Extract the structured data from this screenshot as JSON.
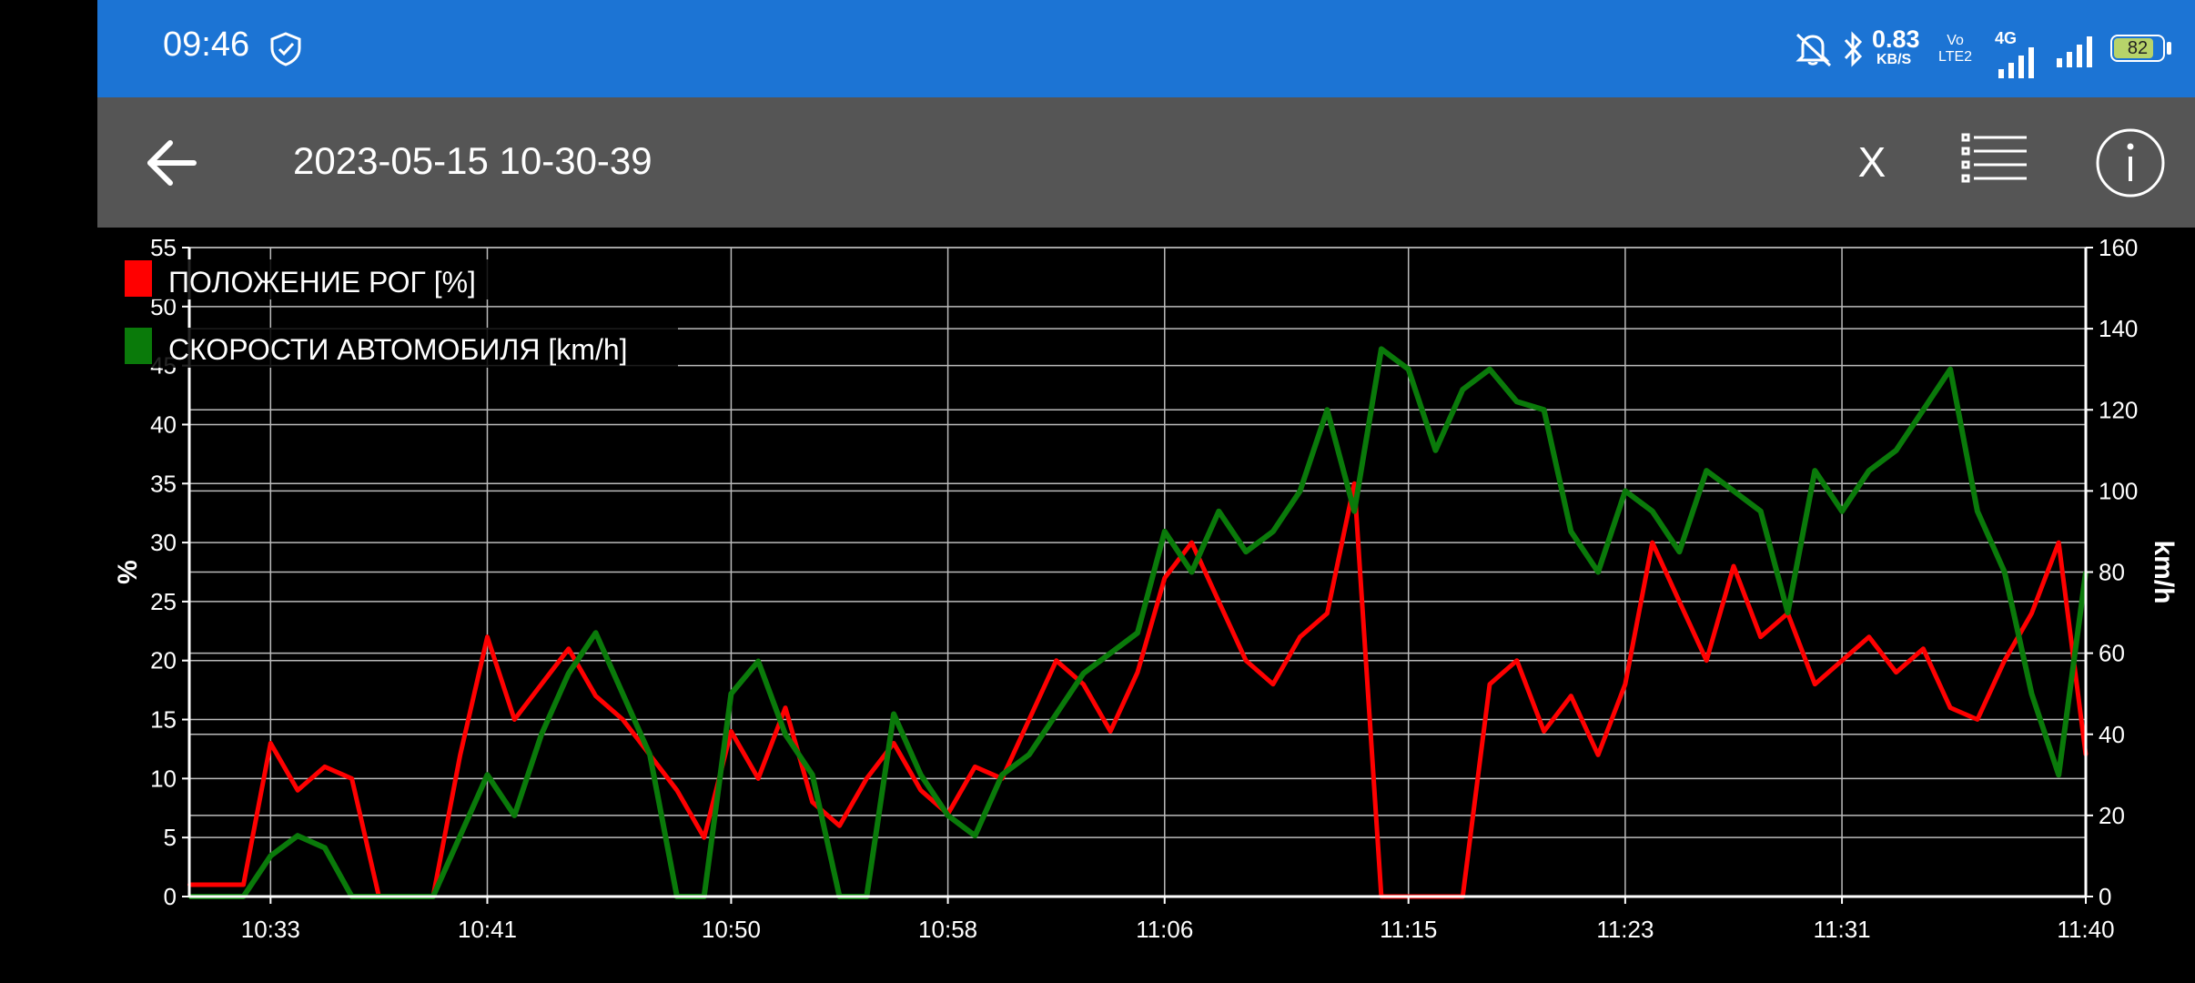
{
  "status_bar": {
    "time": "09:46",
    "net_speed_value": "0.83",
    "net_speed_unit": "KB/S",
    "volte_top": "Vo",
    "volte_bottom": "LTE2",
    "network_type": "4G",
    "battery_level": "82",
    "icons": [
      "shield-icon",
      "mute-icon",
      "bluetooth-icon",
      "signal-icon",
      "signal-icon",
      "battery-icon"
    ]
  },
  "toolbar": {
    "title": "2023-05-15 10-30-39",
    "close_label": "X",
    "icons": [
      "back-arrow-icon",
      "list-icon",
      "info-icon"
    ]
  },
  "colors": {
    "status_bar": "#1c74d4",
    "toolbar": "#555555",
    "background": "#000000",
    "series_red": "#ff0000",
    "series_green": "#0a7a0a",
    "grid": "#bbbbbb"
  },
  "chart_data": {
    "type": "line",
    "grid": true,
    "legend_position": "top-left",
    "x_ticks": [
      "10:33",
      "10:41",
      "10:50",
      "10:58",
      "11:06",
      "11:15",
      "11:23",
      "11:31",
      "11:40"
    ],
    "xlim": [
      "10:30",
      "11:40"
    ],
    "left_axis": {
      "label": "%",
      "ylim": [
        0,
        55
      ],
      "ticks": [
        "0",
        "5",
        "10",
        "15",
        "20",
        "25",
        "30",
        "35",
        "40",
        "45",
        "50",
        "55"
      ]
    },
    "right_axis": {
      "label": "km/h",
      "ylim": [
        0,
        160
      ],
      "ticks": [
        "0",
        "20",
        "40",
        "60",
        "80",
        "100",
        "120",
        "140",
        "160"
      ]
    },
    "series": [
      {
        "name": "ПОЛОЖЕНИЕ РОГ [%]",
        "axis": "left",
        "color": "#ff0000",
        "x": [
          "10:30",
          "10:32",
          "10:33",
          "10:34",
          "10:35",
          "10:36",
          "10:37",
          "10:38",
          "10:39",
          "10:40",
          "10:41",
          "10:42",
          "10:43",
          "10:44",
          "10:45",
          "10:46",
          "10:47",
          "10:48",
          "10:49",
          "10:50",
          "10:51",
          "10:52",
          "10:53",
          "10:54",
          "10:55",
          "10:56",
          "10:57",
          "10:58",
          "10:59",
          "11:00",
          "11:01",
          "11:02",
          "11:03",
          "11:04",
          "11:05",
          "11:06",
          "11:07",
          "11:08",
          "11:09",
          "11:10",
          "11:11",
          "11:12",
          "11:13",
          "11:14",
          "11:15",
          "11:16",
          "11:17",
          "11:18",
          "11:19",
          "11:20",
          "11:21",
          "11:22",
          "11:23",
          "11:24",
          "11:25",
          "11:26",
          "11:27",
          "11:28",
          "11:29",
          "11:30",
          "11:31",
          "11:32",
          "11:33",
          "11:34",
          "11:35",
          "11:36",
          "11:37",
          "11:38",
          "11:39",
          "11:40"
        ],
        "y": [
          1,
          1,
          13,
          9,
          11,
          10,
          0,
          0,
          0,
          12,
          22,
          15,
          18,
          21,
          17,
          15,
          12,
          9,
          5,
          14,
          10,
          16,
          8,
          6,
          10,
          13,
          9,
          7,
          11,
          10,
          15,
          20,
          18,
          14,
          19,
          27,
          30,
          25,
          20,
          18,
          22,
          24,
          35,
          0,
          0,
          0,
          0,
          18,
          20,
          14,
          17,
          12,
          18,
          30,
          25,
          20,
          28,
          22,
          24,
          18,
          20,
          22,
          19,
          21,
          16,
          15,
          20,
          24,
          30,
          12
        ]
      },
      {
        "name": "СКОРОСТИ АВТОМОБИЛЯ [km/h]",
        "axis": "right",
        "color": "#0a7a0a",
        "x": [
          "10:30",
          "10:32",
          "10:33",
          "10:34",
          "10:35",
          "10:36",
          "10:37",
          "10:38",
          "10:39",
          "10:40",
          "10:41",
          "10:42",
          "10:43",
          "10:44",
          "10:45",
          "10:46",
          "10:47",
          "10:48",
          "10:49",
          "10:50",
          "10:51",
          "10:52",
          "10:53",
          "10:54",
          "10:55",
          "10:56",
          "10:57",
          "10:58",
          "10:59",
          "11:00",
          "11:01",
          "11:02",
          "11:03",
          "11:04",
          "11:05",
          "11:06",
          "11:07",
          "11:08",
          "11:09",
          "11:10",
          "11:11",
          "11:12",
          "11:13",
          "11:14",
          "11:15",
          "11:16",
          "11:17",
          "11:18",
          "11:19",
          "11:20",
          "11:21",
          "11:22",
          "11:23",
          "11:24",
          "11:25",
          "11:26",
          "11:27",
          "11:28",
          "11:29",
          "11:30",
          "11:31",
          "11:32",
          "11:33",
          "11:34",
          "11:35",
          "11:36",
          "11:37",
          "11:38",
          "11:39",
          "11:40"
        ],
        "y": [
          0,
          0,
          10,
          15,
          12,
          0,
          0,
          0,
          0,
          15,
          30,
          20,
          40,
          55,
          65,
          50,
          35,
          0,
          0,
          50,
          58,
          40,
          30,
          0,
          0,
          45,
          30,
          20,
          15,
          30,
          35,
          45,
          55,
          60,
          65,
          90,
          80,
          95,
          85,
          90,
          100,
          120,
          95,
          135,
          130,
          110,
          125,
          130,
          122,
          120,
          90,
          80,
          100,
          95,
          85,
          105,
          100,
          95,
          70,
          105,
          95,
          105,
          110,
          120,
          130,
          95,
          80,
          50,
          30,
          80
        ]
      }
    ]
  }
}
